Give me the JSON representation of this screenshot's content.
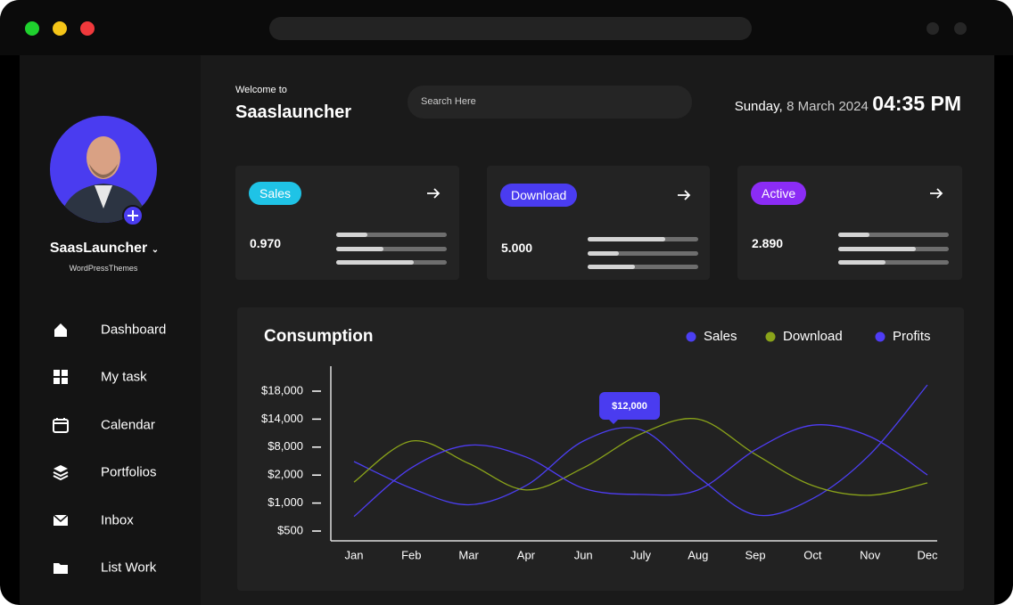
{
  "sidebar": {
    "name": "SaasLauncher",
    "subtitle": "WordPressThemes",
    "menu": [
      "Dashboard",
      "My task",
      "Calendar",
      "Portfolios",
      "Inbox",
      "List Work"
    ]
  },
  "header": {
    "welcome": "Welcome to",
    "title": "Saaslauncher",
    "search": "Search Here",
    "day": "Sunday,",
    "date": "8 March 2024",
    "time": "04:35 PM"
  },
  "cards": [
    {
      "label": "Sales",
      "value": "0.970",
      "color": "#1fc3e6",
      "bars": [
        28,
        43,
        70
      ]
    },
    {
      "label": "Download",
      "value": "5.000",
      "color": "#4a3cf0",
      "bars": [
        70,
        28,
        43
      ]
    },
    {
      "label": "Active",
      "value": "2.890",
      "color": "#8b2cf5",
      "bars": [
        28,
        70,
        43
      ]
    }
  ],
  "chart_data": {
    "type": "line",
    "title": "Consumption",
    "annotation": "$12,000",
    "categories": [
      "Jan",
      "Feb",
      "Mar",
      "Apr",
      "Jun",
      "July",
      "Aug",
      "Sep",
      "Oct",
      "Nov",
      "Dec"
    ],
    "series": [
      {
        "name": "Sales",
        "color": "#4b3ff2",
        "values": [
          4900,
          1530,
          970,
          1625,
          9300,
          11750,
          1940,
          790,
          1160,
          6450,
          19000
        ]
      },
      {
        "name": "Download",
        "color": "#8aa31a",
        "values": [
          1750,
          9300,
          4500,
          1470,
          3550,
          10800,
          14000,
          6450,
          1625,
          1280,
          1720
        ]
      },
      {
        "name": "Profits",
        "color": "#4f3cf5",
        "values": [
          760,
          3550,
          8400,
          5870,
          1530,
          1310,
          1470,
          7420,
          12700,
          10250,
          2030
        ]
      }
    ],
    "ylim": [
      0,
      22000
    ],
    "yticks": [
      {
        "value": 500,
        "label": "$500"
      },
      {
        "value": 1000,
        "label": "$1,000"
      },
      {
        "value": 2000,
        "label": "$2,000"
      },
      {
        "value": 8000,
        "label": "$8,000"
      },
      {
        "value": 14000,
        "label": "$14,000"
      },
      {
        "value": 18000,
        "label": "$18,000"
      }
    ],
    "grid": false
  }
}
